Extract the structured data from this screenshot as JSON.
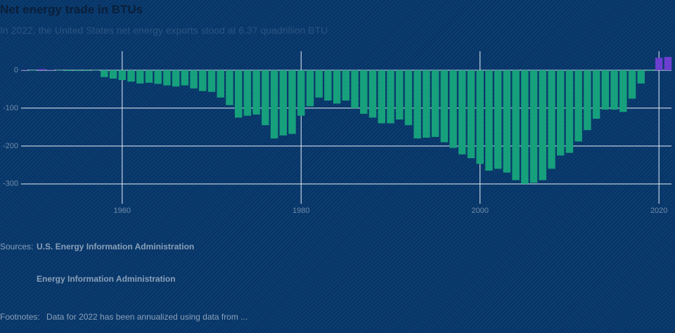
{
  "chart_data": {
    "type": "bar",
    "title": "Net energy trade in BTUs",
    "subtitle": "In 2022, the United States net energy exports stood at 6.37 quadrillion BTU",
    "x": [
      1949,
      1950,
      1951,
      1952,
      1953,
      1954,
      1955,
      1956,
      1957,
      1958,
      1959,
      1960,
      1961,
      1962,
      1963,
      1964,
      1965,
      1966,
      1967,
      1968,
      1969,
      1970,
      1971,
      1972,
      1973,
      1974,
      1975,
      1976,
      1977,
      1978,
      1979,
      1980,
      1981,
      1982,
      1983,
      1984,
      1985,
      1986,
      1987,
      1988,
      1989,
      1990,
      1991,
      1992,
      1993,
      1994,
      1995,
      1996,
      1997,
      1998,
      1999,
      2000,
      2001,
      2002,
      2003,
      2004,
      2005,
      2006,
      2007,
      2008,
      2009,
      2010,
      2011,
      2012,
      2013,
      2014,
      2015,
      2016,
      2017,
      2018,
      2019,
      2020,
      2021
    ],
    "values": [
      1,
      -1,
      3,
      1,
      -1,
      -2,
      -2,
      -2,
      -1,
      -18,
      -22,
      -26,
      -30,
      -35,
      -33,
      -36,
      -40,
      -43,
      -40,
      -48,
      -55,
      -57,
      -72,
      -92,
      -125,
      -120,
      -117,
      -145,
      -180,
      -172,
      -168,
      -120,
      -95,
      -72,
      -80,
      -88,
      -80,
      -100,
      -115,
      -125,
      -140,
      -140,
      -130,
      -145,
      -180,
      -178,
      -176,
      -190,
      -205,
      -222,
      -232,
      -247,
      -265,
      -260,
      -270,
      -290,
      -300,
      -297,
      -290,
      -260,
      -225,
      -218,
      -188,
      -158,
      -128,
      -104,
      -104,
      -110,
      -75,
      -35,
      -2,
      33,
      35
    ],
    "positive_color": "#6b3fd0",
    "negative_color": "#17a07c",
    "xlim": [
      1948.7,
      2021.4
    ],
    "ylim": [
      -330,
      50
    ],
    "xticks": [
      1960,
      1980,
      2000,
      2020
    ],
    "yticks": [
      0,
      -100,
      -200,
      -300
    ],
    "grid": true
  },
  "sources": {
    "label": "Sources:",
    "items": [
      "U.S. Energy Information Administration",
      "Energy Information Administration"
    ]
  },
  "footnotes": {
    "label": "Footnotes:",
    "text": "Data for 2022 has been annualized using data from ..."
  }
}
